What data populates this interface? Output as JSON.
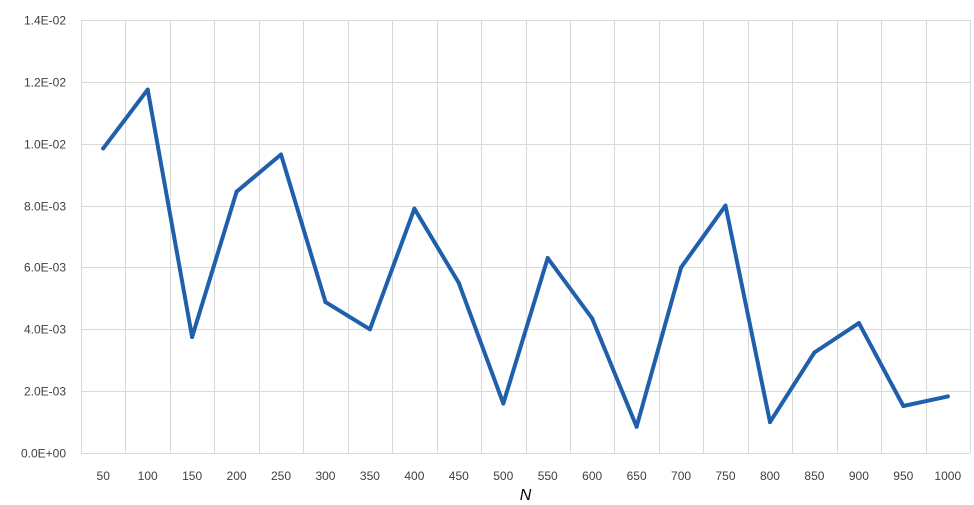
{
  "chart_data": {
    "type": "line",
    "title": "",
    "xlabel": "N",
    "ylabel": "",
    "categories": [
      "50",
      "100",
      "150",
      "200",
      "250",
      "300",
      "350",
      "400",
      "450",
      "500",
      "550",
      "600",
      "650",
      "700",
      "750",
      "800",
      "850",
      "900",
      "950",
      "1000"
    ],
    "series": [
      {
        "values": [
          0.00985,
          0.01175,
          0.00375,
          0.00845,
          0.00965,
          0.00488,
          0.004,
          0.0079,
          0.0055,
          0.0016,
          0.0063,
          0.00435,
          0.00085,
          0.006,
          0.008,
          0.001,
          0.00325,
          0.0042,
          0.00152,
          0.00183
        ]
      }
    ],
    "ylim": [
      0,
      0.014
    ],
    "yticks": [
      0,
      0.002,
      0.004,
      0.006,
      0.008,
      0.01,
      0.012,
      0.014
    ],
    "ytick_labels": [
      "0.0E+00",
      "2.0E-03",
      "4.0E-03",
      "6.0E-03",
      "8.0E-03",
      "1.0E-02",
      "1.2E-02",
      "1.4E-02"
    ],
    "grid": true,
    "line_color": "#1f5fac"
  }
}
